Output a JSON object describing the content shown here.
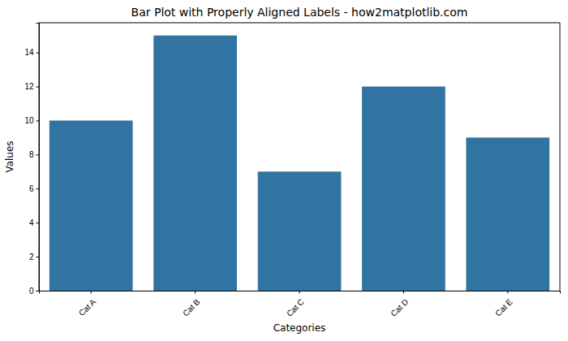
{
  "chart_data": {
    "type": "bar",
    "title": "Bar Plot with Properly Aligned Labels - how2matplotlib.com",
    "x_label": "Categories",
    "y_label": "Values",
    "categories": [
      "Cat A",
      "Cat B",
      "Cat C",
      "Cat D",
      "Cat E"
    ],
    "values": [
      10,
      15,
      7,
      12,
      9
    ],
    "color": "#3274a1",
    "ylim": [
      0,
      15.75
    ],
    "yticks": [
      0,
      2,
      4,
      6,
      8,
      10,
      12,
      14
    ],
    "grid": false
  }
}
